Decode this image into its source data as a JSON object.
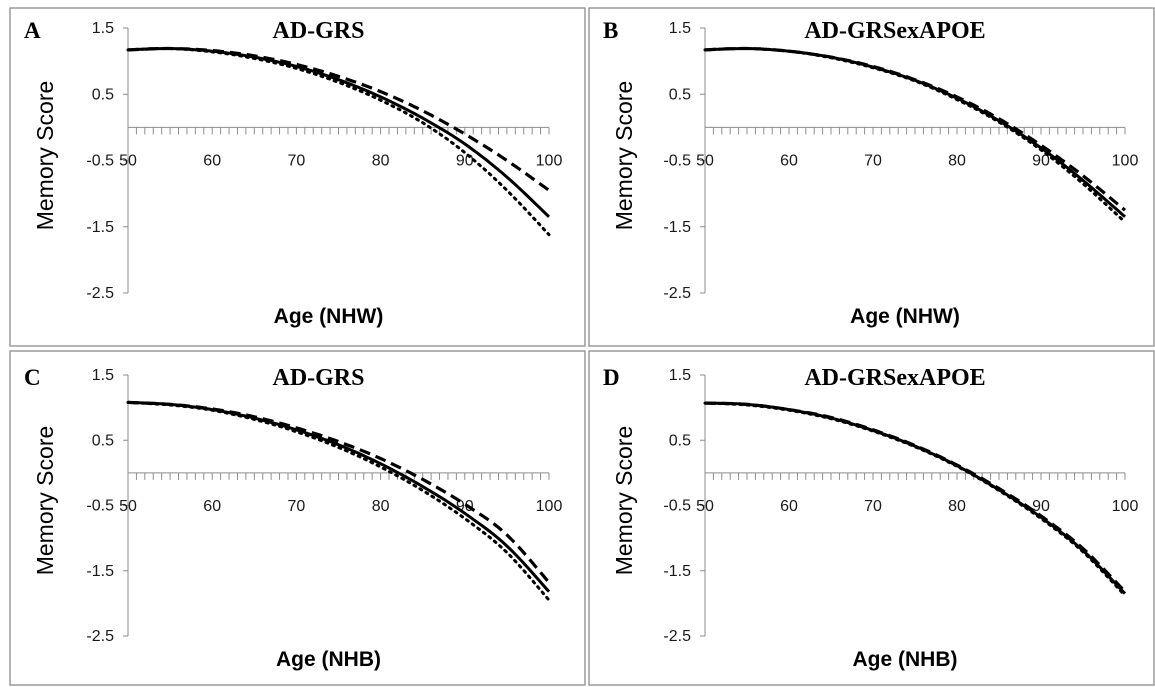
{
  "chart_data": [
    {
      "type": "line",
      "panel_letter": "A",
      "title": "AD-GRS",
      "xlabel": "Age (NHW)",
      "ylabel": "Memory Score",
      "xlim": [
        50,
        100
      ],
      "ylim": [
        -2.5,
        1.5
      ],
      "xticks": [
        50,
        60,
        70,
        80,
        90,
        100
      ],
      "yticks": [
        1.5,
        0.5,
        -0.5,
        -1.5,
        -2.5
      ],
      "x": [
        50,
        55,
        60,
        65,
        70,
        75,
        80,
        85,
        90,
        95,
        100
      ],
      "series": [
        {
          "style": "dashed",
          "values": [
            1.17,
            1.19,
            1.16,
            1.08,
            0.95,
            0.77,
            0.54,
            0.25,
            -0.1,
            -0.5,
            -0.95
          ]
        },
        {
          "style": "solid",
          "values": [
            1.17,
            1.19,
            1.15,
            1.06,
            0.92,
            0.72,
            0.46,
            0.14,
            -0.25,
            -0.75,
            -1.35
          ]
        },
        {
          "style": "dotted",
          "values": [
            1.17,
            1.19,
            1.14,
            1.04,
            0.89,
            0.68,
            0.41,
            0.07,
            -0.38,
            -0.95,
            -1.62
          ]
        }
      ]
    },
    {
      "type": "line",
      "panel_letter": "B",
      "title": "AD-GRSexAPOE",
      "xlabel": "Age (NHW)",
      "ylabel": "Memory Score",
      "xlim": [
        50,
        100
      ],
      "ylim": [
        -2.5,
        1.5
      ],
      "xticks": [
        50,
        60,
        70,
        80,
        90,
        100
      ],
      "yticks": [
        1.5,
        0.5,
        -0.5,
        -1.5,
        -2.5
      ],
      "x": [
        50,
        55,
        60,
        65,
        70,
        75,
        80,
        85,
        90,
        95,
        100
      ],
      "series": [
        {
          "style": "dashed",
          "values": [
            1.17,
            1.19,
            1.15,
            1.06,
            0.92,
            0.72,
            0.46,
            0.13,
            -0.27,
            -0.73,
            -1.25
          ]
        },
        {
          "style": "solid",
          "values": [
            1.17,
            1.19,
            1.15,
            1.06,
            0.91,
            0.71,
            0.44,
            0.1,
            -0.31,
            -0.8,
            -1.35
          ]
        },
        {
          "style": "dotted",
          "values": [
            1.17,
            1.19,
            1.15,
            1.05,
            0.9,
            0.7,
            0.42,
            0.08,
            -0.34,
            -0.85,
            -1.43
          ]
        }
      ]
    },
    {
      "type": "line",
      "panel_letter": "C",
      "title": "AD-GRS",
      "xlabel": "Age (NHB)",
      "ylabel": "Memory Score",
      "xlim": [
        50,
        100
      ],
      "ylim": [
        -2.5,
        1.5
      ],
      "xticks": [
        50,
        60,
        70,
        80,
        90,
        100
      ],
      "yticks": [
        1.5,
        0.5,
        -0.5,
        -1.5,
        -2.5
      ],
      "x": [
        50,
        55,
        60,
        65,
        70,
        75,
        80,
        85,
        90,
        95,
        100
      ],
      "series": [
        {
          "style": "dashed",
          "values": [
            1.08,
            1.05,
            0.98,
            0.86,
            0.69,
            0.48,
            0.22,
            -0.1,
            -0.48,
            -0.95,
            -1.68
          ]
        },
        {
          "style": "solid",
          "values": [
            1.08,
            1.05,
            0.97,
            0.84,
            0.66,
            0.43,
            0.14,
            -0.21,
            -0.62,
            -1.12,
            -1.82
          ]
        },
        {
          "style": "dotted",
          "values": [
            1.08,
            1.04,
            0.96,
            0.82,
            0.63,
            0.39,
            0.09,
            -0.27,
            -0.7,
            -1.22,
            -1.95
          ]
        }
      ]
    },
    {
      "type": "line",
      "panel_letter": "D",
      "title": "AD-GRSexAPOE",
      "xlabel": "Age (NHB)",
      "ylabel": "Memory Score",
      "xlim": [
        50,
        100
      ],
      "ylim": [
        -2.5,
        1.5
      ],
      "xticks": [
        50,
        60,
        70,
        80,
        90,
        100
      ],
      "yticks": [
        1.5,
        0.5,
        -0.5,
        -1.5,
        -2.5
      ],
      "x": [
        50,
        55,
        60,
        65,
        70,
        75,
        80,
        85,
        90,
        95,
        100
      ],
      "series": [
        {
          "style": "dashed",
          "values": [
            1.07,
            1.05,
            0.97,
            0.85,
            0.66,
            0.42,
            0.12,
            -0.24,
            -0.66,
            -1.16,
            -1.82
          ]
        },
        {
          "style": "solid",
          "values": [
            1.07,
            1.05,
            0.97,
            0.84,
            0.65,
            0.41,
            0.11,
            -0.26,
            -0.68,
            -1.19,
            -1.85
          ]
        },
        {
          "style": "dotted",
          "values": [
            1.07,
            1.04,
            0.96,
            0.83,
            0.64,
            0.4,
            0.1,
            -0.27,
            -0.7,
            -1.21,
            -1.88
          ]
        }
      ]
    }
  ]
}
